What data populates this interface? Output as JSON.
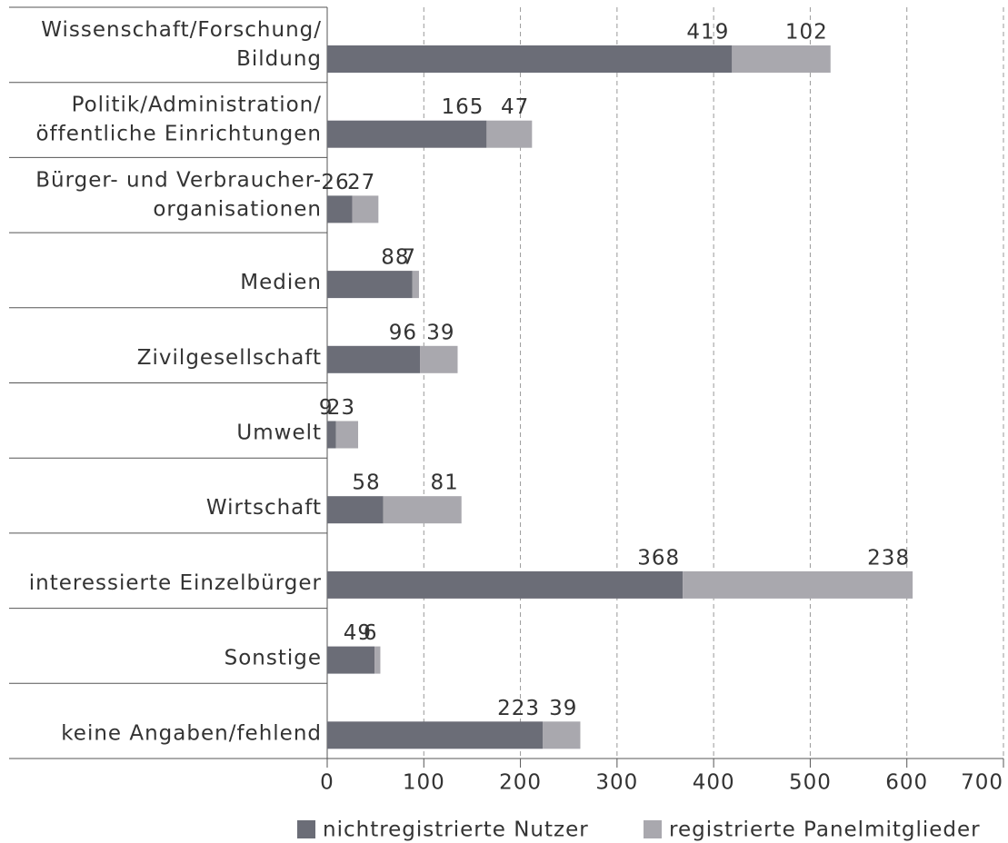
{
  "chart_data": {
    "type": "stacked-barh",
    "categories": [
      [
        "Wissenschaft/Forschung/",
        "Bildung"
      ],
      [
        "Politik/Administration/",
        "öffentliche Einrichtungen"
      ],
      [
        "Bürger- und Verbraucher-",
        "organisationen"
      ],
      [
        "Medien"
      ],
      [
        "Zivilgesellschaft"
      ],
      [
        "Umwelt"
      ],
      [
        "Wirtschaft"
      ],
      [
        "interessierte Einzelbürger"
      ],
      [
        "Sonstige"
      ],
      [
        "keine Angaben/fehlend"
      ]
    ],
    "series": [
      {
        "name": "nichtregistrierte Nutzer",
        "color": "#6b6d77",
        "values": [
          419,
          165,
          26,
          88,
          96,
          9,
          58,
          368,
          49,
          223
        ]
      },
      {
        "name": "registrierte Panelmitglieder",
        "color": "#a9a8ae",
        "values": [
          102,
          47,
          27,
          7,
          39,
          23,
          81,
          238,
          6,
          39
        ]
      }
    ],
    "xlim": [
      0,
      700
    ],
    "xticks": [
      0,
      100,
      200,
      300,
      400,
      500,
      600,
      700
    ],
    "grid": true
  }
}
